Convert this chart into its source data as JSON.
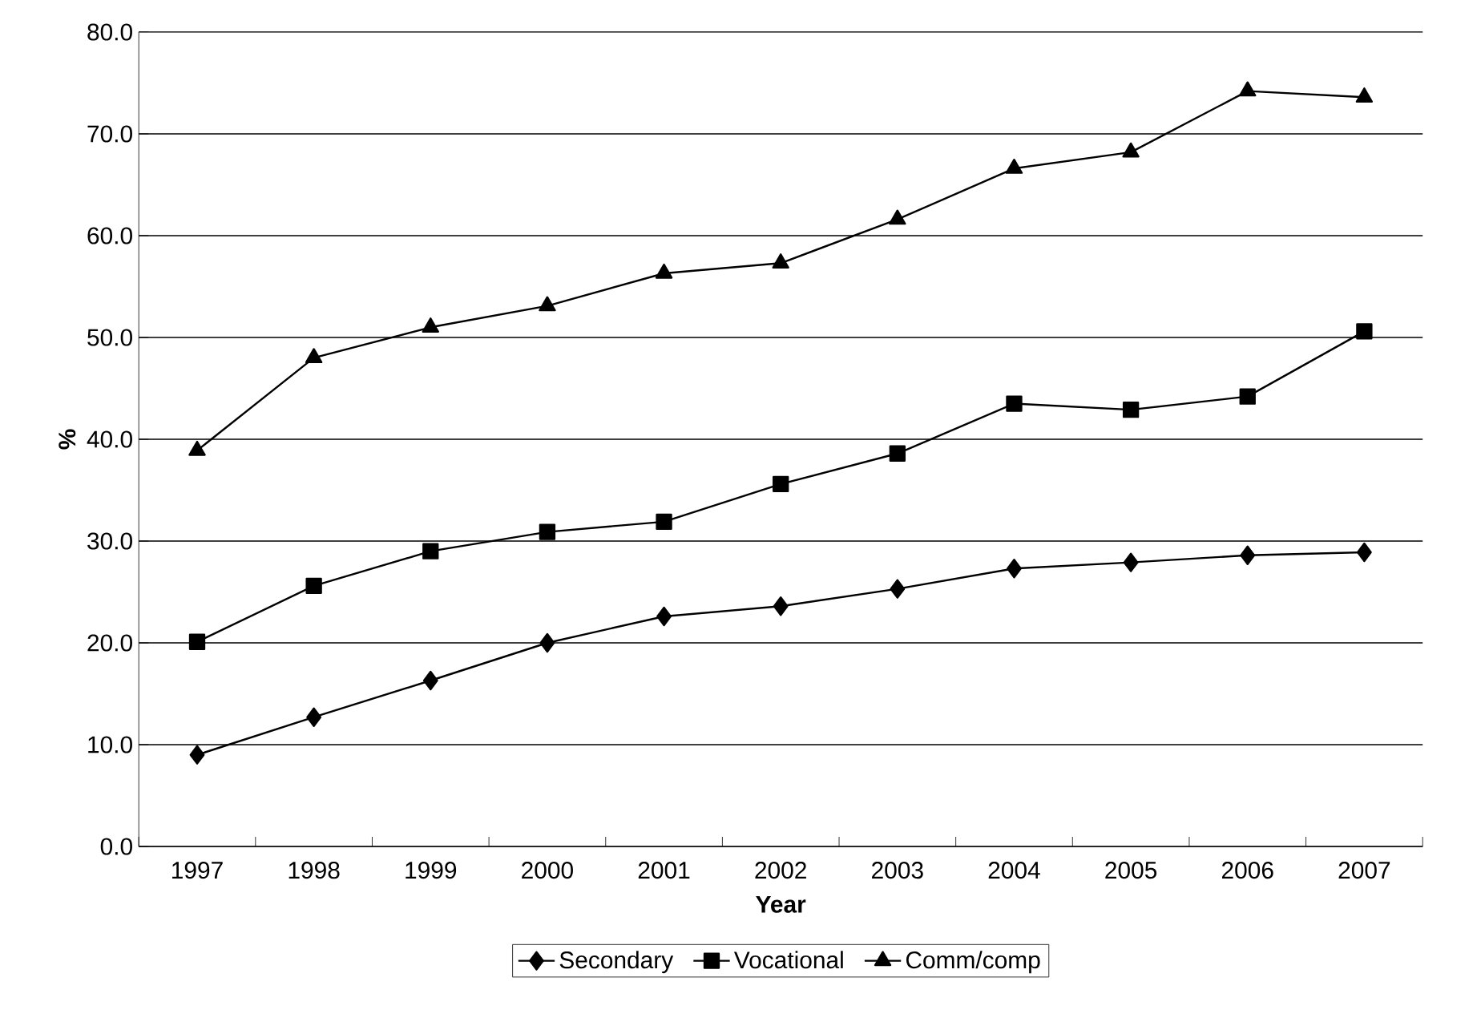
{
  "chart_data": {
    "type": "line",
    "xlabel": "Year",
    "ylabel": "%",
    "categories": [
      "1997",
      "1998",
      "1999",
      "2000",
      "2001",
      "2002",
      "2003",
      "2004",
      "2005",
      "2006",
      "2007"
    ],
    "series": [
      {
        "name": "Secondary",
        "color": "#000000",
        "marker": "diamond",
        "values": [
          9.0,
          12.7,
          16.3,
          20.0,
          22.6,
          23.6,
          25.3,
          27.3,
          27.9,
          28.6,
          28.9
        ]
      },
      {
        "name": "Vocational",
        "color": "#000000",
        "marker": "square",
        "values": [
          20.1,
          25.6,
          29.0,
          30.9,
          31.9,
          35.6,
          38.6,
          43.5,
          42.9,
          44.2,
          50.6
        ]
      },
      {
        "name": "Comm/comp",
        "color": "#000000",
        "marker": "triangle",
        "values": [
          38.9,
          48.0,
          51.0,
          53.1,
          56.3,
          57.3,
          61.6,
          66.6,
          68.2,
          74.2,
          73.6
        ]
      }
    ],
    "ylim": [
      0,
      80
    ],
    "yticks": [
      {
        "value": 0,
        "label": "0.0"
      },
      {
        "value": 10,
        "label": "10.0"
      },
      {
        "value": 20,
        "label": "20.0"
      },
      {
        "value": 30,
        "label": "30.0"
      },
      {
        "value": 40,
        "label": "40.0"
      },
      {
        "value": 50,
        "label": "50.0"
      },
      {
        "value": 60,
        "label": "60.0"
      },
      {
        "value": 70,
        "label": "70.0"
      },
      {
        "value": 80,
        "label": "80.0"
      }
    ],
    "grid": "y",
    "legend": "bottom",
    "line_style": "solid"
  }
}
